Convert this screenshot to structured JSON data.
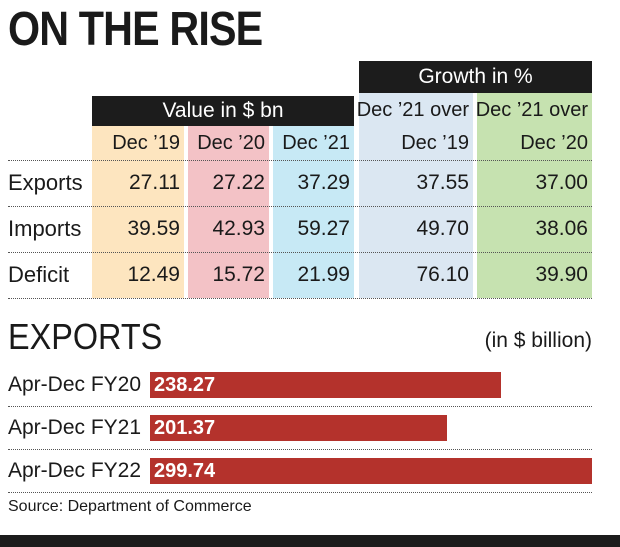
{
  "title": "ON THE RISE",
  "table": {
    "value_header": "Value in $ bn",
    "growth_header": "Growth in %",
    "columns": [
      {
        "line1": "Dec ’19",
        "line2": "",
        "color": "#fde5bf"
      },
      {
        "line1": "Dec ’20",
        "line2": "",
        "color": "#f3c2c6"
      },
      {
        "line1": "Dec ’21",
        "line2": "",
        "color": "#c7e9f5"
      },
      {
        "line1": "Dec ’21 over",
        "line2": "Dec ’19",
        "color": "#dbe7f2"
      },
      {
        "line1": "Dec ’21 over",
        "line2": "Dec ’20",
        "color": "#c6e2b0"
      }
    ],
    "rows": [
      {
        "label": "Exports",
        "values": [
          "27.11",
          "27.22",
          "37.29",
          "37.55",
          "37.00"
        ]
      },
      {
        "label": "Imports",
        "values": [
          "39.59",
          "42.93",
          "59.27",
          "49.70",
          "38.06"
        ]
      },
      {
        "label": "Deficit",
        "values": [
          "12.49",
          "15.72",
          "21.99",
          "76.10",
          "39.90"
        ]
      }
    ]
  },
  "chart_data": {
    "type": "bar",
    "orientation": "horizontal",
    "title": "EXPORTS",
    "unit": "(in $ billion)",
    "categories": [
      "Apr-Dec FY20",
      "Apr-Dec FY21",
      "Apr-Dec FY22"
    ],
    "values": [
      238.27,
      201.37,
      299.74
    ],
    "value_labels": [
      "238.27",
      "201.37",
      "299.74"
    ],
    "bar_color": "#b4322c",
    "xlim": [
      0,
      300
    ]
  },
  "source": "Source: Department of Commerce"
}
